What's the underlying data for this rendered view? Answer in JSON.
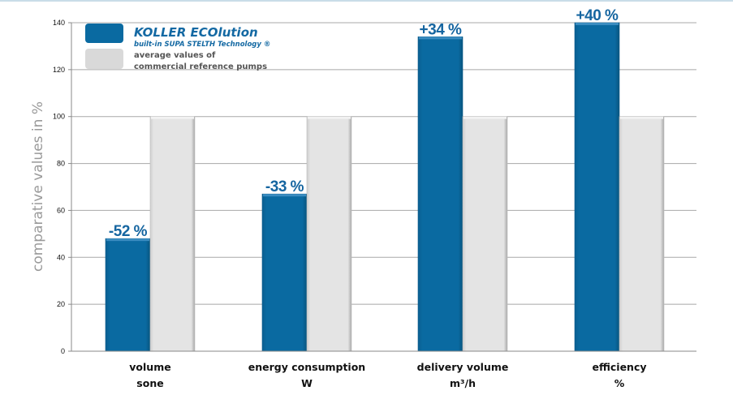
{
  "chart_data": {
    "type": "bar",
    "title": "",
    "xlabel": "",
    "ylabel": "comparative values in %",
    "ylim": [
      0,
      140
    ],
    "yticks": [
      0,
      20,
      40,
      60,
      80,
      100,
      120,
      140
    ],
    "grid": true,
    "legend_position": "top-left",
    "categories": [
      {
        "line1": "volume",
        "line2": "sone"
      },
      {
        "line1": "energy consumption",
        "line2": "W"
      },
      {
        "line1": "delivery volume",
        "line2": "m³/h"
      },
      {
        "line1": "efficiency",
        "line2": "%"
      }
    ],
    "series": [
      {
        "name": "KOLLER ECOlution",
        "subtitle": "built-in SUPA STELTH Technology ®",
        "color": "#0a6aa1",
        "values": [
          48,
          67,
          134,
          140
        ],
        "data_labels": [
          "-52 %",
          "-33 %",
          "+34 %",
          "+40 %"
        ]
      },
      {
        "name_line1": "average values of",
        "name_line2": "commercial reference pumps",
        "color": "#e3e3e3",
        "values": [
          100,
          100,
          100,
          100
        ]
      }
    ]
  }
}
